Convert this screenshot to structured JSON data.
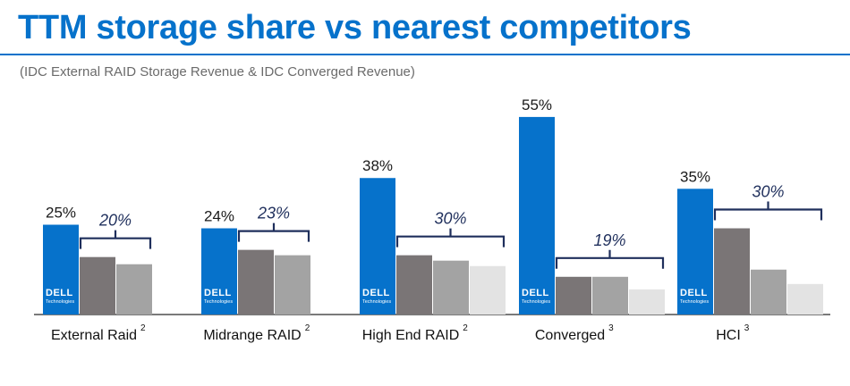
{
  "header": {
    "title": "TTM storage share vs nearest competitors",
    "subtitle": "(IDC External RAID Storage Revenue & IDC Converged Revenue)"
  },
  "logo": {
    "main": "DELL",
    "sub": "Technologies"
  },
  "colors": {
    "dell": "#0672cb",
    "competitor1": "#7a7576",
    "competitor2": "#a3a3a3",
    "competitor3": "#e3e3e3",
    "bracket": "#1f2f5c"
  },
  "chart_data": {
    "type": "bar",
    "title": "TTM storage share vs nearest competitors",
    "subtitle": "(IDC External RAID Storage Revenue & IDC Converged Revenue)",
    "ylim": [
      0,
      60
    ],
    "grid": false,
    "categories": [
      {
        "label": "External Raid",
        "footnote": "2",
        "dell": 25,
        "dell_label": "25%",
        "competitors": [
          16,
          14
        ],
        "competitor_label": "20%"
      },
      {
        "label": "Midrange RAID",
        "footnote": "2",
        "dell": 24,
        "dell_label": "24%",
        "competitors": [
          18,
          16.5
        ],
        "competitor_label": "23%"
      },
      {
        "label": "High End RAID",
        "footnote": "2",
        "dell": 38,
        "dell_label": "38%",
        "competitors": [
          16.5,
          15,
          13.5
        ],
        "competitor_label": "30%"
      },
      {
        "label": "Converged",
        "footnote": "3",
        "dell": 55,
        "dell_label": "55%",
        "competitors": [
          10.5,
          10.5,
          7
        ],
        "competitor_label": "19%"
      },
      {
        "label": "HCI",
        "footnote": "3",
        "dell": 35,
        "dell_label": "35%",
        "competitors": [
          24,
          12.5,
          8.5
        ],
        "competitor_label": "30%"
      }
    ]
  }
}
